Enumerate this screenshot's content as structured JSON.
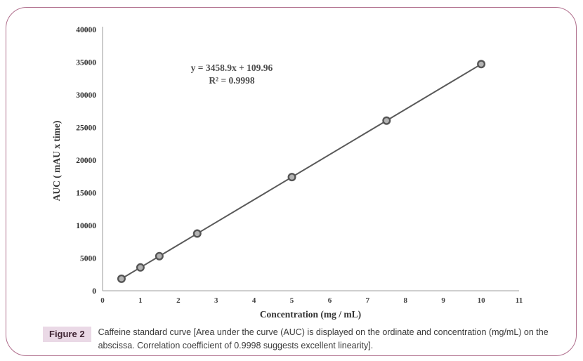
{
  "figure": {
    "border_color": "#b06f8d",
    "background": "#ffffff"
  },
  "chart_data": {
    "type": "scatter",
    "title": "",
    "xlabel": "Concentration  (mg / mL)",
    "ylabel": "AUC ( mAU x time)",
    "x": [
      0.5,
      1,
      1.5,
      2.5,
      5,
      7.5,
      10
    ],
    "y": [
      1839,
      3569,
      5298,
      8757,
      17404,
      26052,
      34699
    ],
    "xlim": [
      0,
      11
    ],
    "ylim": [
      0,
      40000
    ],
    "x_ticks": [
      0,
      1,
      2,
      3,
      4,
      5,
      6,
      7,
      8,
      9,
      10,
      11
    ],
    "y_ticks": [
      0,
      5000,
      10000,
      15000,
      20000,
      25000,
      30000,
      35000,
      40000
    ],
    "grid": false,
    "legend": "none",
    "trendline": {
      "slope": 3458.9,
      "intercept": 109.96,
      "r_squared": 0.9998
    },
    "annotation_line1": "y = 3458.9x + 109.96",
    "annotation_line2": "R² = 0.9998",
    "colors": {
      "line": "#595959",
      "marker_stroke": "#555555",
      "marker_fill": "#b3b3b3",
      "axis": "#bfbfbf",
      "ytick_text": "#2b2b2b",
      "xtick_text": "#404040",
      "axis_title_text": "#333333",
      "annotation_text": "#4d4d4d"
    }
  },
  "caption": {
    "figure_label": "Figure 2",
    "text": "Caffeine standard curve [Area under the curve (AUC) is displayed on the ordinate and concentration (mg/mL) on the abscissa. Correlation coefficient of 0.9998 suggests excellent linearity].",
    "badge_bg": "#ead9e6",
    "badge_text_color": "#3f2433"
  }
}
